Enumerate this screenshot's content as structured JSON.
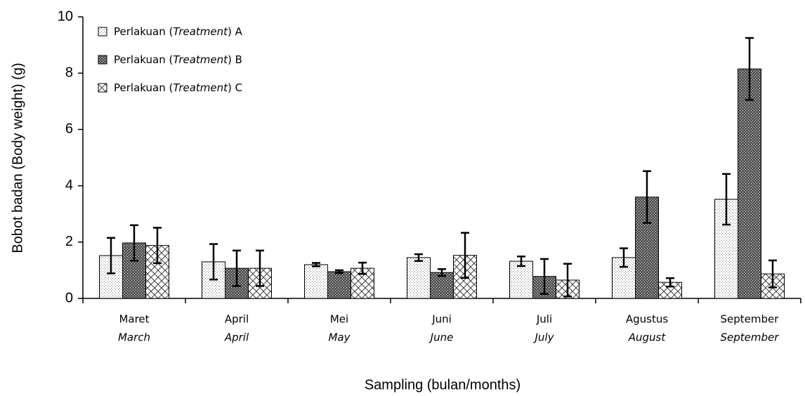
{
  "chart_data": {
    "type": "bar",
    "y_label": "Bobot badan (Body weight) (g)",
    "x_label": "Sampling (bulan/months)",
    "categories": [
      "Maret",
      "April",
      "Mei",
      "Juni",
      "Juli",
      "Agustus",
      "September"
    ],
    "categories_en": [
      "March",
      "April",
      "May",
      "June",
      "July",
      "August",
      "September"
    ],
    "series": [
      {
        "name": "Perlakuan (Treatment) A",
        "color": "#808080",
        "pattern": "dots",
        "values": [
          1.52,
          1.3,
          1.2,
          1.45,
          1.32,
          1.45,
          3.52
        ],
        "errors": [
          0.63,
          0.63,
          0.06,
          0.12,
          0.17,
          0.33,
          0.9
        ]
      },
      {
        "name": "Perlakuan (Treatment) B",
        "color": "#555555",
        "pattern": "dense",
        "values": [
          1.97,
          1.07,
          0.95,
          0.92,
          0.78,
          3.6,
          8.15
        ],
        "errors": [
          0.63,
          0.63,
          0.05,
          0.12,
          0.62,
          0.92,
          1.1
        ]
      },
      {
        "name": "Perlakuan (Treatment) C",
        "color": "#404040",
        "pattern": "crosshatch",
        "values": [
          1.88,
          1.07,
          1.07,
          1.53,
          0.65,
          0.57,
          0.87
        ],
        "errors": [
          0.63,
          0.63,
          0.2,
          0.8,
          0.58,
          0.15,
          0.48
        ]
      }
    ],
    "ylim": [
      0,
      10
    ],
    "yticks": [
      0,
      2,
      4,
      6,
      8,
      10
    ],
    "grid": false,
    "legend": "top-left"
  }
}
